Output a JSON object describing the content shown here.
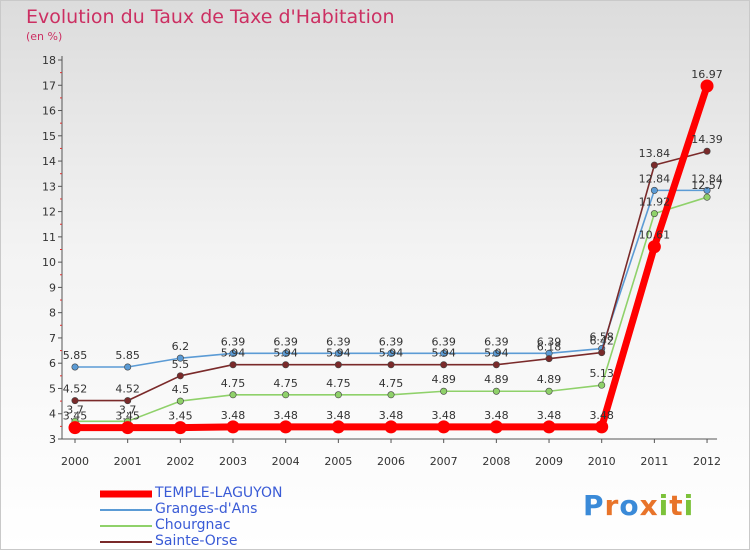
{
  "title": "Evolution du Taux de Taxe d'Habitation",
  "subtitle": "(en %)",
  "logo": {
    "letters": [
      {
        "ch": "P",
        "color": "#3a8ad8"
      },
      {
        "ch": "r",
        "color": "#e8742a"
      },
      {
        "ch": "o",
        "color": "#3a8ad8"
      },
      {
        "ch": "x",
        "color": "#e8742a"
      },
      {
        "ch": "i",
        "color": "#7cc23a"
      },
      {
        "ch": "t",
        "color": "#e8742a"
      },
      {
        "ch": "i",
        "color": "#7cc23a"
      }
    ]
  },
  "chart_data": {
    "type": "line",
    "x": [
      "2000",
      "2001",
      "2002",
      "2003",
      "2004",
      "2005",
      "2006",
      "2007",
      "2008",
      "2009",
      "2010",
      "2011",
      "2012"
    ],
    "ylim": [
      3,
      18
    ],
    "yticks": [
      3,
      4,
      5,
      6,
      7,
      8,
      9,
      10,
      11,
      12,
      13,
      14,
      15,
      16,
      17,
      18
    ],
    "grid": false,
    "legend_position": "bottom-left",
    "series": [
      {
        "name": "Granges-d'Ans",
        "color": "#5b9bd5",
        "values": [
          5.85,
          5.85,
          6.2,
          6.39,
          6.39,
          6.39,
          6.39,
          6.39,
          6.39,
          6.39,
          6.58,
          12.84,
          12.84
        ],
        "labels": [
          "5.85",
          "5.85",
          "6.2",
          "6.39",
          "6.39",
          "6.39",
          "6.39",
          "6.39",
          "6.39",
          "6.39",
          "6.58",
          "12.84",
          "12.84"
        ]
      },
      {
        "name": "Chourgnac",
        "color": "#8fd16a",
        "values": [
          3.7,
          3.7,
          4.5,
          4.75,
          4.75,
          4.75,
          4.75,
          4.89,
          4.89,
          4.89,
          5.13,
          11.92,
          12.57
        ],
        "labels": [
          "3.7",
          "3.7",
          "4.5",
          "4.75",
          "4.75",
          "4.75",
          "4.75",
          "4.89",
          "4.89",
          "4.89",
          "5.13",
          "11.92",
          "12.57"
        ]
      },
      {
        "name": "Sainte-Orse",
        "color": "#7a2a2a",
        "values": [
          4.52,
          4.52,
          5.5,
          5.94,
          5.94,
          5.94,
          5.94,
          5.94,
          5.94,
          6.18,
          6.42,
          13.84,
          14.39
        ],
        "labels": [
          "4.52",
          "4.52",
          "5.5",
          "5.94",
          "5.94",
          "5.94",
          "5.94",
          "5.94",
          "5.94",
          "6.18",
          "6.42",
          "13.84",
          "14.39"
        ]
      },
      {
        "name": "TEMPLE-LAGUYON",
        "color": "#ff0000",
        "values": [
          3.45,
          3.45,
          3.45,
          3.48,
          3.48,
          3.48,
          3.48,
          3.48,
          3.48,
          3.48,
          3.48,
          10.61,
          16.97
        ],
        "labels": [
          "3.45",
          "3.45",
          "3.45",
          "3.48",
          "3.48",
          "3.48",
          "3.48",
          "3.48",
          "3.48",
          "3.48",
          "3.48",
          "10.61",
          "16.97"
        ]
      }
    ]
  },
  "legend": [
    {
      "name": "TEMPLE-LAGUYON",
      "color": "#ff0000"
    },
    {
      "name": "Granges-d'Ans",
      "color": "#5b9bd5"
    },
    {
      "name": "Chourgnac",
      "color": "#8fd16a"
    },
    {
      "name": "Sainte-Orse",
      "color": "#7a2a2a"
    }
  ]
}
